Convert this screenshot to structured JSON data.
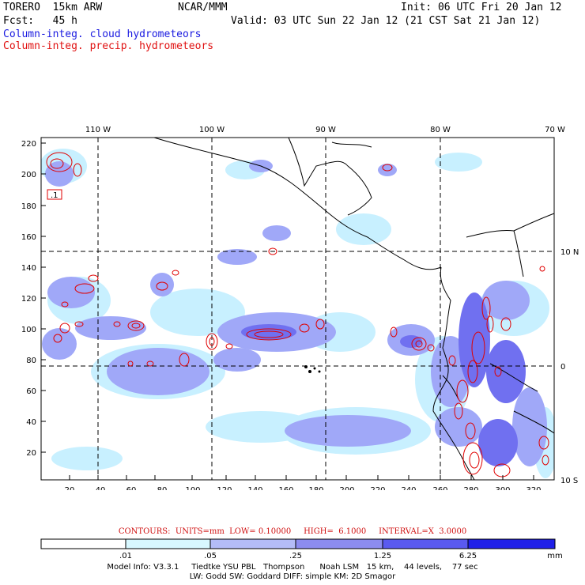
{
  "header": {
    "model": "TORERO  15km ARW",
    "org": "NCAR/MMM",
    "init": "Init: 06 UTC Fri 20 Jan 12",
    "fcst": "Fcst:   45 h",
    "valid": "Valid: 03 UTC Sun 22 Jan 12 (21 CST Sat 21 Jan 12)",
    "field1": "Column-integ. cloud hydrometeors",
    "field2": "Column-integ. precip. hydrometeors"
  },
  "axes": {
    "x_ticks": [
      "20",
      "40",
      "60",
      "80",
      "100",
      "120",
      "140",
      "160",
      "180",
      "200",
      "220",
      "240",
      "260",
      "280",
      "300",
      "320"
    ],
    "y_ticks": [
      "220",
      "200",
      "180",
      "160",
      "140",
      "120",
      "100",
      "80",
      "60",
      "40",
      "20"
    ],
    "lon_labels": [
      "110 W",
      "100 W",
      "90 W",
      "80 W",
      "70 W"
    ],
    "lat_labels": [
      "10 N",
      "0",
      "10 S"
    ]
  },
  "map": {
    "contour_label": ".1",
    "colors": {
      "cloud_light": "#c8f0ff",
      "cloud_mid": "#a0a8f8",
      "cloud_dark": "#7070f0",
      "precip": "#e00000"
    }
  },
  "contours_text": "CONTOURS:  UNITS=mm  LOW= 0.10000     HIGH=  6.1000     INTERVAL=X  3.0000",
  "legend": {
    "ticks": [
      ".01",
      ".05",
      ".25",
      "1.25",
      "6.25"
    ],
    "unit": "mm",
    "colors": [
      "#ffffff",
      "#d8f8ff",
      "#b4bcf8",
      "#8c8cf0",
      "#5a5af0",
      "#2020e8"
    ]
  },
  "model_info": {
    "line1": "Model Info: V3.3.1     Tiedtke YSU PBL   Thompson      Noah LSM   15 km,    44 levels,    77 sec",
    "line2": "LW: Godd SW: Goddard DIFF: simple KM: 2D Smagor"
  }
}
